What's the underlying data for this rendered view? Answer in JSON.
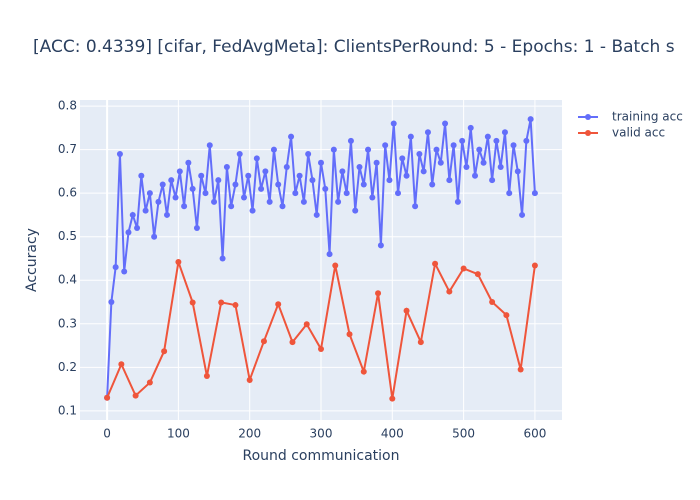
{
  "chart_data": {
    "type": "line",
    "title": "[ACC: 0.4339] [cifar, FedAvgMeta]: ClientsPerRound: 5 - Epochs: 1 - Batch s",
    "x_label": "Round communication",
    "y_label": "Accuracy",
    "xlim": [
      -38,
      638
    ],
    "ylim": [
      0.079,
      0.814
    ],
    "xticks": [
      0,
      100,
      200,
      300,
      400,
      500,
      600
    ],
    "yticks": [
      0.1,
      0.2,
      0.3,
      0.4,
      0.5,
      0.6,
      0.7,
      0.8
    ],
    "grid": true,
    "legend": "right",
    "series": [
      {
        "name": "training acc",
        "color": "#636efa",
        "x": [
          0,
          6,
          12,
          18,
          24,
          30,
          36,
          42,
          48,
          54,
          60,
          66,
          72,
          78,
          84,
          90,
          96,
          102,
          108,
          114,
          120,
          126,
          132,
          138,
          144,
          150,
          156,
          162,
          168,
          174,
          180,
          186,
          192,
          198,
          204,
          210,
          216,
          222,
          228,
          234,
          240,
          246,
          252,
          258,
          264,
          270,
          276,
          282,
          288,
          294,
          300,
          306,
          312,
          318,
          324,
          330,
          336,
          342,
          348,
          354,
          360,
          366,
          372,
          378,
          384,
          390,
          396,
          402,
          408,
          414,
          420,
          426,
          432,
          438,
          444,
          450,
          456,
          462,
          468,
          474,
          480,
          486,
          492,
          498,
          504,
          510,
          516,
          522,
          528,
          534,
          540,
          546,
          552,
          558,
          564,
          570,
          576,
          582,
          588,
          594,
          600
        ],
        "values": [
          0.13,
          0.35,
          0.43,
          0.69,
          0.42,
          0.51,
          0.55,
          0.52,
          0.64,
          0.56,
          0.6,
          0.5,
          0.58,
          0.62,
          0.55,
          0.63,
          0.59,
          0.65,
          0.57,
          0.67,
          0.61,
          0.52,
          0.64,
          0.6,
          0.71,
          0.58,
          0.63,
          0.45,
          0.66,
          0.57,
          0.62,
          0.69,
          0.59,
          0.64,
          0.56,
          0.68,
          0.61,
          0.65,
          0.58,
          0.7,
          0.62,
          0.57,
          0.66,
          0.73,
          0.6,
          0.64,
          0.58,
          0.69,
          0.63,
          0.55,
          0.67,
          0.61,
          0.46,
          0.7,
          0.58,
          0.65,
          0.6,
          0.72,
          0.56,
          0.66,
          0.62,
          0.7,
          0.59,
          0.67,
          0.48,
          0.71,
          0.63,
          0.76,
          0.6,
          0.68,
          0.64,
          0.73,
          0.57,
          0.69,
          0.65,
          0.74,
          0.62,
          0.7,
          0.67,
          0.76,
          0.63,
          0.71,
          0.58,
          0.72,
          0.66,
          0.75,
          0.64,
          0.7,
          0.67,
          0.73,
          0.63,
          0.72,
          0.66,
          0.74,
          0.6,
          0.71,
          0.65,
          0.55,
          0.72,
          0.77,
          0.6
        ]
      },
      {
        "name": "valid acc",
        "color": "#EF553B",
        "x": [
          0,
          20,
          40,
          60,
          80,
          100,
          120,
          140,
          160,
          180,
          200,
          220,
          240,
          260,
          280,
          300,
          320,
          340,
          360,
          380,
          400,
          420,
          440,
          460,
          480,
          500,
          520,
          540,
          560,
          580,
          600
        ],
        "values": [
          0.13,
          0.207,
          0.135,
          0.165,
          0.237,
          0.442,
          0.349,
          0.18,
          0.349,
          0.343,
          0.171,
          0.26,
          0.345,
          0.258,
          0.299,
          0.242,
          0.434,
          0.276,
          0.19,
          0.37,
          0.128,
          0.33,
          0.258,
          0.438,
          0.374,
          0.427,
          0.414,
          0.35,
          0.32,
          0.195,
          0.434
        ]
      }
    ]
  }
}
